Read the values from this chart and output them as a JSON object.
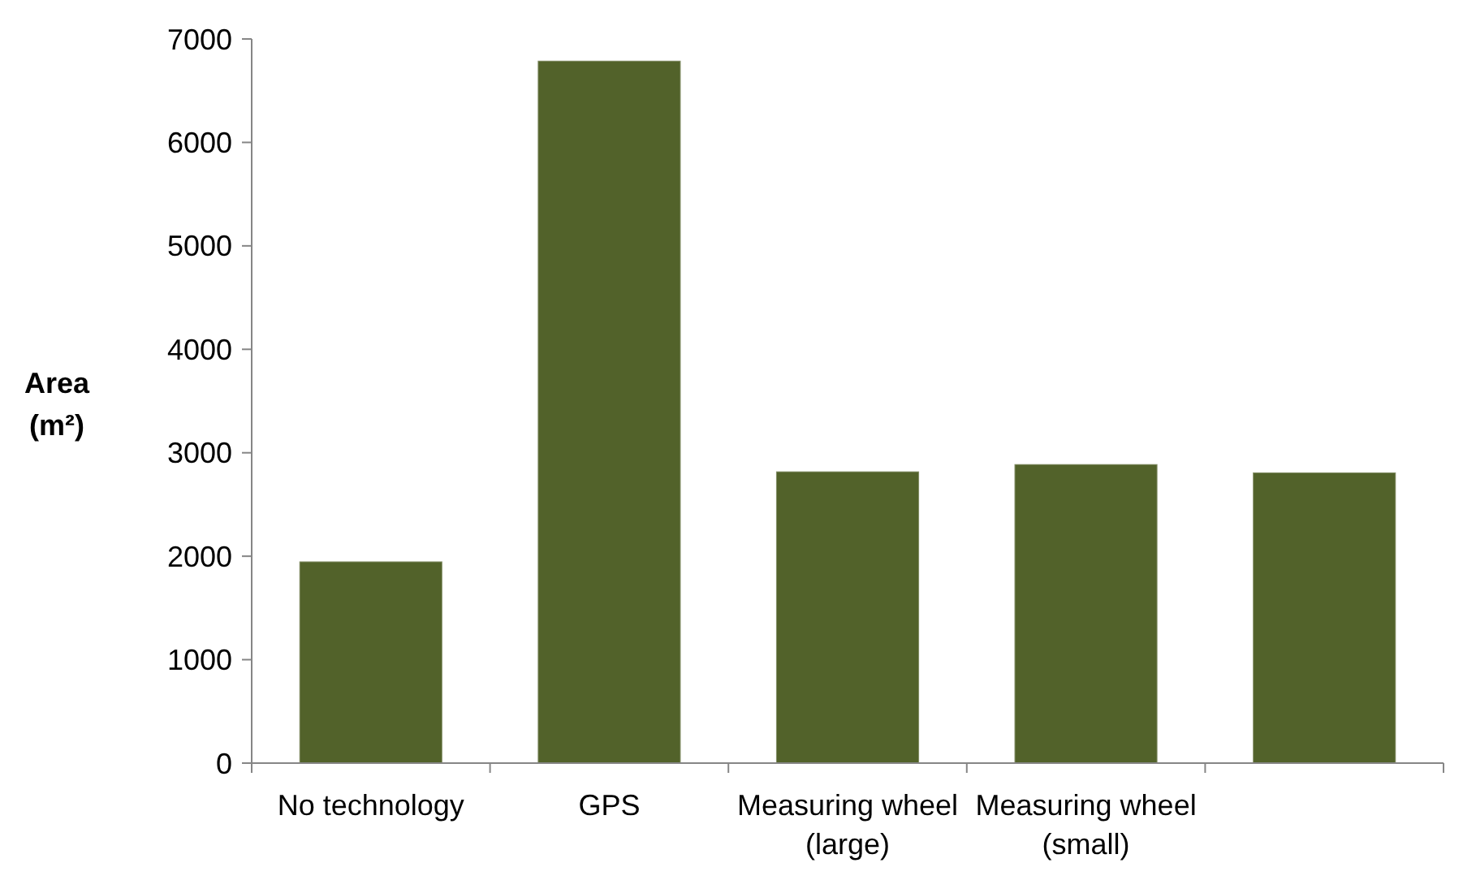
{
  "chart_data": {
    "type": "bar",
    "ylabel": "Area (m²)",
    "categories": [
      "No technology",
      "GPS",
      "Measuring wheel (large)",
      "Measuring wheel (small)",
      null
    ],
    "values": [
      1950,
      6790,
      2820,
      2890,
      2810
    ],
    "color": "#52622a",
    "ylim": [
      0,
      7000
    ],
    "yticks": [
      0,
      1000,
      2000,
      3000,
      4000,
      5000,
      6000,
      7000
    ],
    "grid": false
  }
}
